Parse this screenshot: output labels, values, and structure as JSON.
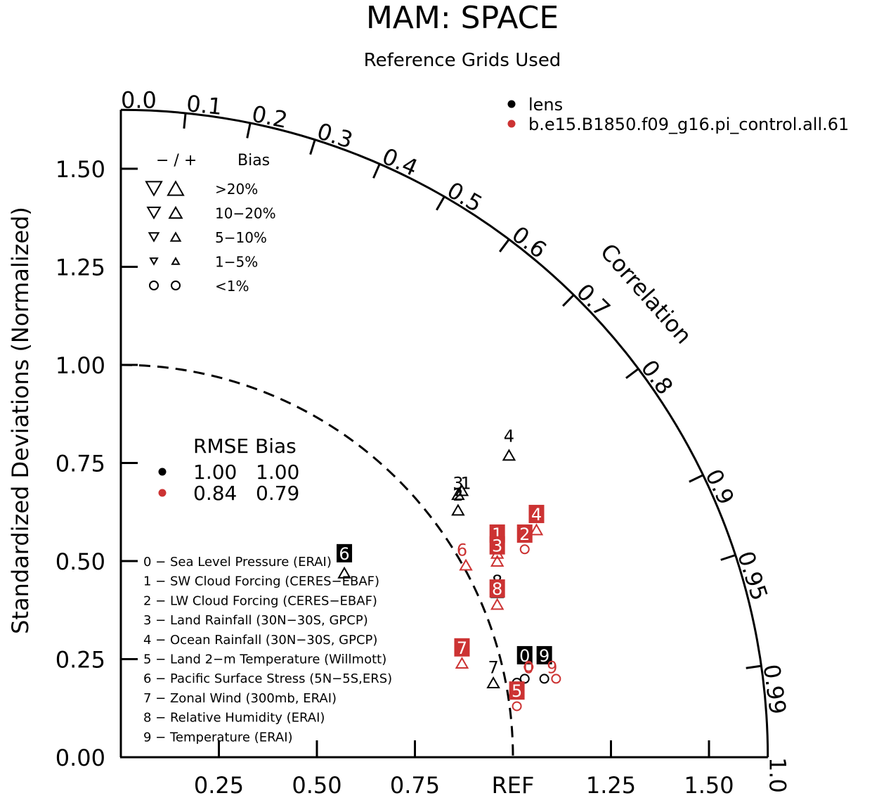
{
  "chart_data": {
    "type": "scatter",
    "diagram": "taylor",
    "title": "MAM: SPACE",
    "subtitle": "Reference Grids Used",
    "ylabel": "Standardized Deviations (Normalized)",
    "correlation_label": "Correlation",
    "ref_label": "REF",
    "radial_max": 1.65,
    "y_ticks": [
      "0.00",
      "0.25",
      "0.50",
      "0.75",
      "1.00",
      "1.25",
      "1.50"
    ],
    "x_ticks": [
      "0.25",
      "0.50",
      "0.75",
      "1.25",
      "1.50"
    ],
    "corr_ticks": [
      {
        "value": 0.0,
        "label": "0.0"
      },
      {
        "value": 0.1,
        "label": "0.1"
      },
      {
        "value": 0.2,
        "label": "0.2"
      },
      {
        "value": 0.3,
        "label": "0.3"
      },
      {
        "value": 0.4,
        "label": "0.4"
      },
      {
        "value": 0.5,
        "label": "0.5"
      },
      {
        "value": 0.6,
        "label": "0.6"
      },
      {
        "value": 0.7,
        "label": "0.7"
      },
      {
        "value": 0.8,
        "label": "0.8"
      },
      {
        "value": 0.9,
        "label": "0.9"
      },
      {
        "value": 0.95,
        "label": "0.95"
      },
      {
        "value": 0.99,
        "label": "0.99"
      },
      {
        "value": 1.0,
        "label": "1.0"
      }
    ],
    "series": [
      {
        "name": "lens",
        "color": "#000000",
        "rmse": "1.00",
        "bias": "1.00",
        "points": [
          {
            "id": "0",
            "x": 1.03,
            "y": 0.2,
            "marker": "circle",
            "label_dx": 0.0,
            "label_dy": 0.06,
            "boxed": true
          },
          {
            "id": "1",
            "x": 0.87,
            "y": 0.68,
            "marker": "up",
            "label_dx": 0.01,
            "label_dy": 0.02,
            "boxed": false
          },
          {
            "id": "2",
            "x": 0.86,
            "y": 0.63,
            "marker": "up",
            "label_dx": 0.0,
            "label_dy": 0.04,
            "boxed": false
          },
          {
            "id": "3",
            "x": 0.86,
            "y": 0.67,
            "marker": "up",
            "label_dx": 0.0,
            "label_dy": 0.03,
            "boxed": false
          },
          {
            "id": "4",
            "x": 0.99,
            "y": 0.77,
            "marker": "up",
            "label_dx": 0.0,
            "label_dy": 0.05,
            "boxed": false
          },
          {
            "id": "5",
            "x": 1.01,
            "y": 0.19,
            "marker": "circle",
            "label_dx": 0.0,
            "label_dy": -0.02,
            "boxed": false
          },
          {
            "id": "6",
            "x": 0.57,
            "y": 0.47,
            "marker": "up",
            "label_dx": 0.0,
            "label_dy": 0.05,
            "boxed": true
          },
          {
            "id": "7",
            "x": 0.95,
            "y": 0.19,
            "marker": "up",
            "label_dx": 0.0,
            "label_dy": 0.04,
            "boxed": false
          },
          {
            "id": "8",
            "x": 0.96,
            "y": 0.42,
            "marker": "up",
            "label_dx": 0.0,
            "label_dy": 0.03,
            "boxed": false
          },
          {
            "id": "9",
            "x": 1.08,
            "y": 0.2,
            "marker": "circle",
            "label_dx": 0.0,
            "label_dy": 0.06,
            "boxed": true
          }
        ]
      },
      {
        "name": "b.e15.B1850.f09_g16.pi_control.all.61",
        "color": "#cc3333",
        "rmse": "0.84",
        "bias": "0.79",
        "points": [
          {
            "id": "0",
            "x": 1.04,
            "y": 0.23,
            "marker": "circle",
            "label_dx": 0.0,
            "label_dy": 0.0,
            "boxed": false
          },
          {
            "id": "1",
            "x": 0.96,
            "y": 0.52,
            "marker": "up",
            "label_dx": 0.0,
            "label_dy": 0.05,
            "boxed": true
          },
          {
            "id": "2",
            "x": 1.03,
            "y": 0.53,
            "marker": "circle",
            "label_dx": 0.0,
            "label_dy": 0.04,
            "boxed": true
          },
          {
            "id": "3",
            "x": 0.96,
            "y": 0.5,
            "marker": "up",
            "label_dx": 0.0,
            "label_dy": 0.04,
            "boxed": true
          },
          {
            "id": "4",
            "x": 1.06,
            "y": 0.58,
            "marker": "up",
            "label_dx": 0.0,
            "label_dy": 0.04,
            "boxed": true
          },
          {
            "id": "5",
            "x": 1.01,
            "y": 0.13,
            "marker": "circle",
            "label_dx": 0.0,
            "label_dy": 0.04,
            "boxed": true
          },
          {
            "id": "6",
            "x": 0.88,
            "y": 0.49,
            "marker": "up",
            "label_dx": -0.01,
            "label_dy": 0.04,
            "boxed": false
          },
          {
            "id": "7",
            "x": 0.87,
            "y": 0.24,
            "marker": "up",
            "label_dx": 0.0,
            "label_dy": 0.04,
            "boxed": true
          },
          {
            "id": "8",
            "x": 0.96,
            "y": 0.39,
            "marker": "up",
            "label_dx": 0.0,
            "label_dy": 0.04,
            "boxed": true
          },
          {
            "id": "9",
            "x": 1.11,
            "y": 0.2,
            "marker": "circle",
            "label_dx": -0.01,
            "label_dy": 0.03,
            "boxed": false
          }
        ]
      }
    ],
    "bias_legend": {
      "header": "− / +",
      "header_label": "Bias",
      "rows": [
        {
          "label": ">20%",
          "kind": "tri",
          "size": 1.0
        },
        {
          "label": "10−20%",
          "kind": "tri",
          "size": 0.8
        },
        {
          "label": "5−10%",
          "kind": "tri",
          "size": 0.6
        },
        {
          "label": "1−5%",
          "kind": "tri",
          "size": 0.45
        },
        {
          "label": "<1%",
          "kind": "circle",
          "size": 0.6
        }
      ]
    },
    "stats_header": "RMSE Bias",
    "variables": [
      "0 − Sea Level Pressure (ERAI)",
      "1 − SW Cloud Forcing (CERES−EBAF)",
      "2 − LW Cloud Forcing (CERES−EBAF)",
      "3 − Land Rainfall (30N−30S, GPCP)",
      "4 − Ocean Rainfall (30N−30S, GPCP)",
      "5 − Land 2−m Temperature (Willmott)",
      "6 − Pacific Surface Stress (5N−5S,ERS)",
      "7 − Zonal Wind (300mb, ERAI)",
      "8 − Relative Humidity (ERAI)",
      "9 − Temperature (ERAI)"
    ]
  }
}
